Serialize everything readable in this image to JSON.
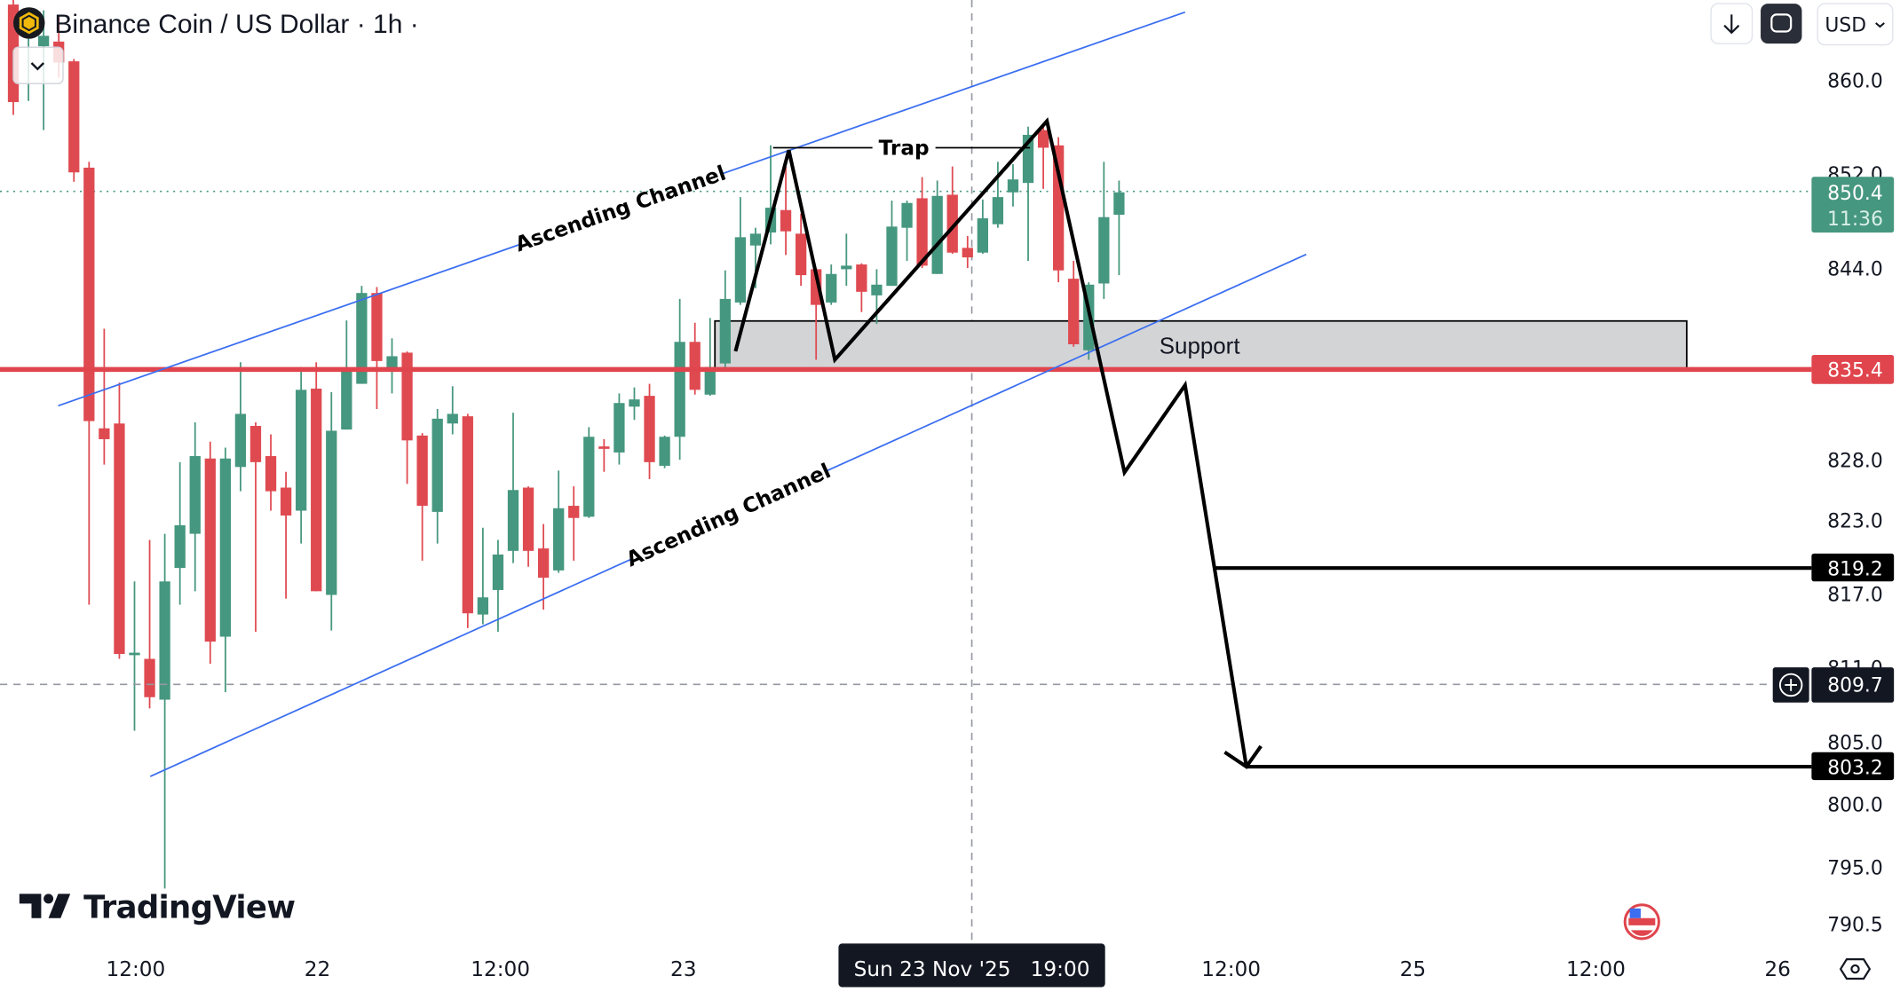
{
  "header": {
    "title": "Binance Coin / US Dollar · 1h ·",
    "symbol_icon": "bnb-coin-icon",
    "collapse_icon": "chevron-down-icon"
  },
  "toolbar": {
    "scroll_icon": "arrow-down-icon",
    "fullscreen_icon": "fullscreen-icon",
    "currency": "USD"
  },
  "price_axis": {
    "ticks": [
      "860.0",
      "852.0",
      "844.0",
      "828.0",
      "823.0",
      "817.0",
      "811.0",
      "805.0",
      "800.0",
      "795.0",
      "790.5"
    ],
    "last_price": "850.4",
    "countdown": "11:36",
    "level_line": "835.4",
    "target_1": "819.2",
    "crosshair_price": "809.7",
    "target_2": "803.2",
    "scale": "log"
  },
  "time_axis": {
    "labels": [
      "12:00",
      "22",
      "12:00",
      "23",
      "12:00",
      "25",
      "12:00",
      "26"
    ],
    "crosshair_label": "Sun 23 Nov '25   19:00",
    "settings_icon": "settings-icon"
  },
  "annotations": {
    "channel_upper": "Ascending Channel",
    "channel_lower": "Ascending Channel",
    "trap": "Trap",
    "support": "Support"
  },
  "brand": {
    "name": "TradingView",
    "events_icon": "us-flag-icon"
  },
  "colors": {
    "up": "#46977f",
    "down": "#df4a51",
    "level_line": "#e0454d",
    "channel": "#3b6ef0",
    "support_fill": "#d3d4d6",
    "last_price_bg": "#46977f",
    "dark_label": "#131722"
  },
  "chart_data": {
    "type": "candlestick",
    "interval": "1h",
    "columns": [
      "open",
      "high",
      "low",
      "close"
    ],
    "candles": [
      [
        866.5,
        867.5,
        857.0,
        858.1
      ],
      [
        863.8,
        866.2,
        858.2,
        864.4
      ],
      [
        862.9,
        866.0,
        855.7,
        863.8
      ],
      [
        863.3,
        865.5,
        860.2,
        861.5
      ],
      [
        861.6,
        861.8,
        851.3,
        852.1
      ],
      [
        852.5,
        853.0,
        816.1,
        831.2
      ],
      [
        830.6,
        838.9,
        827.6,
        829.7
      ],
      [
        831.0,
        834.4,
        811.7,
        812.1
      ],
      [
        812.0,
        818.0,
        805.9,
        812.2
      ],
      [
        811.7,
        821.4,
        807.7,
        808.6
      ],
      [
        808.4,
        821.9,
        793.3,
        818.0
      ],
      [
        819.1,
        827.8,
        816.1,
        822.6
      ],
      [
        821.9,
        831.1,
        817.2,
        828.3
      ],
      [
        828.1,
        829.5,
        811.3,
        813.1
      ],
      [
        813.5,
        829.0,
        809.0,
        828.1
      ],
      [
        827.4,
        836.1,
        825.4,
        831.8
      ],
      [
        830.8,
        831.1,
        813.9,
        827.8
      ],
      [
        828.3,
        830.1,
        823.8,
        825.4
      ],
      [
        825.7,
        827.0,
        816.6,
        823.4
      ],
      [
        823.8,
        835.7,
        821.1,
        833.8
      ],
      [
        833.9,
        836.1,
        817.2,
        817.2
      ],
      [
        816.9,
        833.6,
        814.0,
        830.4
      ],
      [
        830.5,
        839.6,
        830.5,
        835.5
      ],
      [
        834.3,
        842.5,
        834.3,
        841.9
      ],
      [
        841.9,
        842.4,
        832.2,
        836.2
      ],
      [
        835.4,
        838.1,
        833.5,
        836.6
      ],
      [
        836.9,
        837.0,
        826.0,
        829.6
      ],
      [
        830.0,
        830.2,
        819.7,
        824.2
      ],
      [
        823.7,
        832.2,
        821.1,
        831.4
      ],
      [
        831.0,
        834.1,
        830.1,
        831.8
      ],
      [
        831.6,
        831.8,
        814.2,
        815.4
      ],
      [
        815.3,
        822.4,
        814.5,
        816.7
      ],
      [
        817.3,
        821.4,
        813.9,
        820.2
      ],
      [
        820.5,
        831.9,
        819.5,
        825.5
      ],
      [
        825.7,
        825.8,
        819.2,
        820.5
      ],
      [
        820.7,
        822.7,
        815.7,
        818.3
      ],
      [
        818.9,
        827.1,
        818.7,
        824.0
      ],
      [
        824.2,
        825.8,
        819.7,
        823.2
      ],
      [
        823.3,
        830.7,
        823.2,
        829.9
      ],
      [
        829.1,
        829.7,
        827.0,
        828.9
      ],
      [
        828.6,
        833.5,
        827.6,
        832.7
      ],
      [
        832.4,
        834.0,
        831.3,
        833.0
      ],
      [
        833.3,
        834.3,
        826.4,
        827.8
      ],
      [
        827.5,
        830.0,
        827.3,
        829.9
      ],
      [
        829.9,
        841.4,
        828.0,
        837.8
      ],
      [
        837.8,
        839.4,
        833.4,
        833.8
      ],
      [
        833.4,
        839.8,
        833.3,
        835.7
      ],
      [
        836.0,
        843.8,
        835.4,
        841.4
      ],
      [
        841.1,
        850.0,
        840.9,
        846.6
      ],
      [
        845.9,
        847.4,
        842.3,
        846.9
      ],
      [
        847.0,
        854.4,
        846.0,
        849.1
      ],
      [
        848.9,
        852.6,
        845.1,
        847.1
      ],
      [
        846.9,
        848.6,
        842.5,
        843.4
      ],
      [
        843.9,
        844.0,
        836.3,
        840.9
      ],
      [
        841.1,
        844.3,
        840.9,
        843.5
      ],
      [
        843.9,
        846.9,
        842.5,
        844.2
      ],
      [
        844.3,
        844.4,
        840.3,
        842.0
      ],
      [
        841.7,
        843.9,
        839.3,
        842.6
      ],
      [
        842.5,
        849.7,
        842.5,
        847.5
      ],
      [
        847.4,
        849.7,
        844.6,
        849.5
      ],
      [
        849.9,
        851.7,
        844.0,
        844.2
      ],
      [
        843.5,
        851.4,
        843.5,
        850.1
      ],
      [
        850.2,
        852.6,
        845.2,
        845.3
      ],
      [
        845.7,
        846.7,
        844.0,
        844.9
      ],
      [
        845.3,
        849.8,
        845.2,
        848.2
      ],
      [
        847.7,
        853.0,
        847.4,
        850.0
      ],
      [
        850.4,
        852.8,
        849.2,
        851.5
      ],
      [
        851.2,
        856.0,
        844.6,
        855.3
      ],
      [
        855.7,
        856.1,
        850.7,
        854.2
      ],
      [
        854.4,
        855.1,
        842.8,
        843.8
      ],
      [
        843.1,
        844.6,
        837.4,
        837.6
      ],
      [
        837.1,
        842.8,
        836.3,
        842.6
      ],
      [
        842.7,
        853.0,
        841.4,
        848.3
      ],
      [
        848.5,
        851.4,
        843.4,
        850.4
      ]
    ]
  }
}
